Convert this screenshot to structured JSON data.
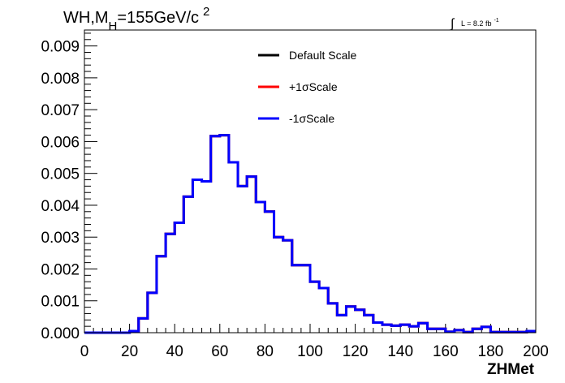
{
  "header": {
    "title_main": "WH,M",
    "title_sub": "H",
    "title_rest": "=155GeV/c",
    "title_sup": "2",
    "lumi_symbol": "∫",
    "lumi_text": "L = 8.2 fb",
    "lumi_sup": "-1"
  },
  "chart_data": {
    "type": "line",
    "title": "WH,MH=155GeV/c2",
    "xlabel": "ZHMet",
    "ylabel": "",
    "xlim": [
      0,
      200
    ],
    "ylim": [
      0,
      0.0095
    ],
    "x_ticks": [
      "0",
      "20",
      "40",
      "60",
      "80",
      "100",
      "120",
      "140",
      "160",
      "180",
      "200"
    ],
    "y_ticks": [
      "0.000",
      "0.001",
      "0.002",
      "0.003",
      "0.004",
      "0.005",
      "0.006",
      "0.007",
      "0.008",
      "0.009"
    ],
    "grid": false,
    "legend_position": "top-center",
    "bin_edges": [
      0,
      4,
      8,
      12,
      16,
      20,
      24,
      28,
      32,
      36,
      40,
      44,
      48,
      52,
      56,
      60,
      64,
      68,
      72,
      76,
      80,
      84,
      88,
      92,
      96,
      100,
      104,
      108,
      112,
      116,
      120,
      124,
      128,
      132,
      136,
      140,
      144,
      148,
      152,
      156,
      160,
      164,
      168,
      172,
      176,
      180,
      184,
      188,
      192,
      196,
      200
    ],
    "series": [
      {
        "name": "Default Scale",
        "color": "#000000",
        "values": [
          0,
          0,
          0,
          0,
          0,
          5e-05,
          0.00045,
          0.00125,
          0.0024,
          0.0031,
          0.00345,
          0.00427,
          0.0048,
          0.00475,
          0.00617,
          0.0062,
          0.00535,
          0.0046,
          0.0049,
          0.0041,
          0.0038,
          0.003,
          0.0029,
          0.00212,
          0.00212,
          0.0016,
          0.0014,
          0.00092,
          0.00055,
          0.00082,
          0.00072,
          0.00055,
          0.00032,
          0.00025,
          0.00022,
          0.00025,
          0.0002,
          0.0003,
          0.00012,
          0.00012,
          3e-05,
          8e-05,
          2e-05,
          0.00012,
          0.00018,
          2e-05,
          2e-05,
          2e-05,
          2e-05,
          5e-05
        ]
      },
      {
        "name": "+1σScale",
        "color": "#ff0000",
        "values": [
          0,
          0,
          0,
          0,
          0,
          5e-05,
          0.00045,
          0.00125,
          0.0024,
          0.0031,
          0.00345,
          0.00427,
          0.0048,
          0.00475,
          0.00617,
          0.0062,
          0.00535,
          0.0046,
          0.0049,
          0.0041,
          0.0038,
          0.003,
          0.0029,
          0.00212,
          0.00212,
          0.0016,
          0.0014,
          0.00092,
          0.00055,
          0.00082,
          0.00072,
          0.00055,
          0.00032,
          0.00025,
          0.00022,
          0.00025,
          0.0002,
          0.0003,
          0.00012,
          0.00012,
          3e-05,
          8e-05,
          2e-05,
          0.00012,
          0.00018,
          2e-05,
          2e-05,
          2e-05,
          2e-05,
          5e-05
        ]
      },
      {
        "name": "-1σScale",
        "color": "#0000ff",
        "values": [
          0,
          0,
          0,
          0,
          0,
          5e-05,
          0.00045,
          0.00125,
          0.0024,
          0.0031,
          0.00345,
          0.00427,
          0.0048,
          0.00475,
          0.00617,
          0.0062,
          0.00535,
          0.0046,
          0.0049,
          0.0041,
          0.0038,
          0.003,
          0.0029,
          0.00212,
          0.00212,
          0.0016,
          0.0014,
          0.00092,
          0.00055,
          0.00082,
          0.00072,
          0.00055,
          0.00032,
          0.00025,
          0.00022,
          0.00025,
          0.0002,
          0.0003,
          0.00012,
          0.00012,
          3e-05,
          8e-05,
          2e-05,
          0.00012,
          0.00018,
          2e-05,
          2e-05,
          2e-05,
          2e-05,
          5e-05
        ]
      }
    ]
  }
}
